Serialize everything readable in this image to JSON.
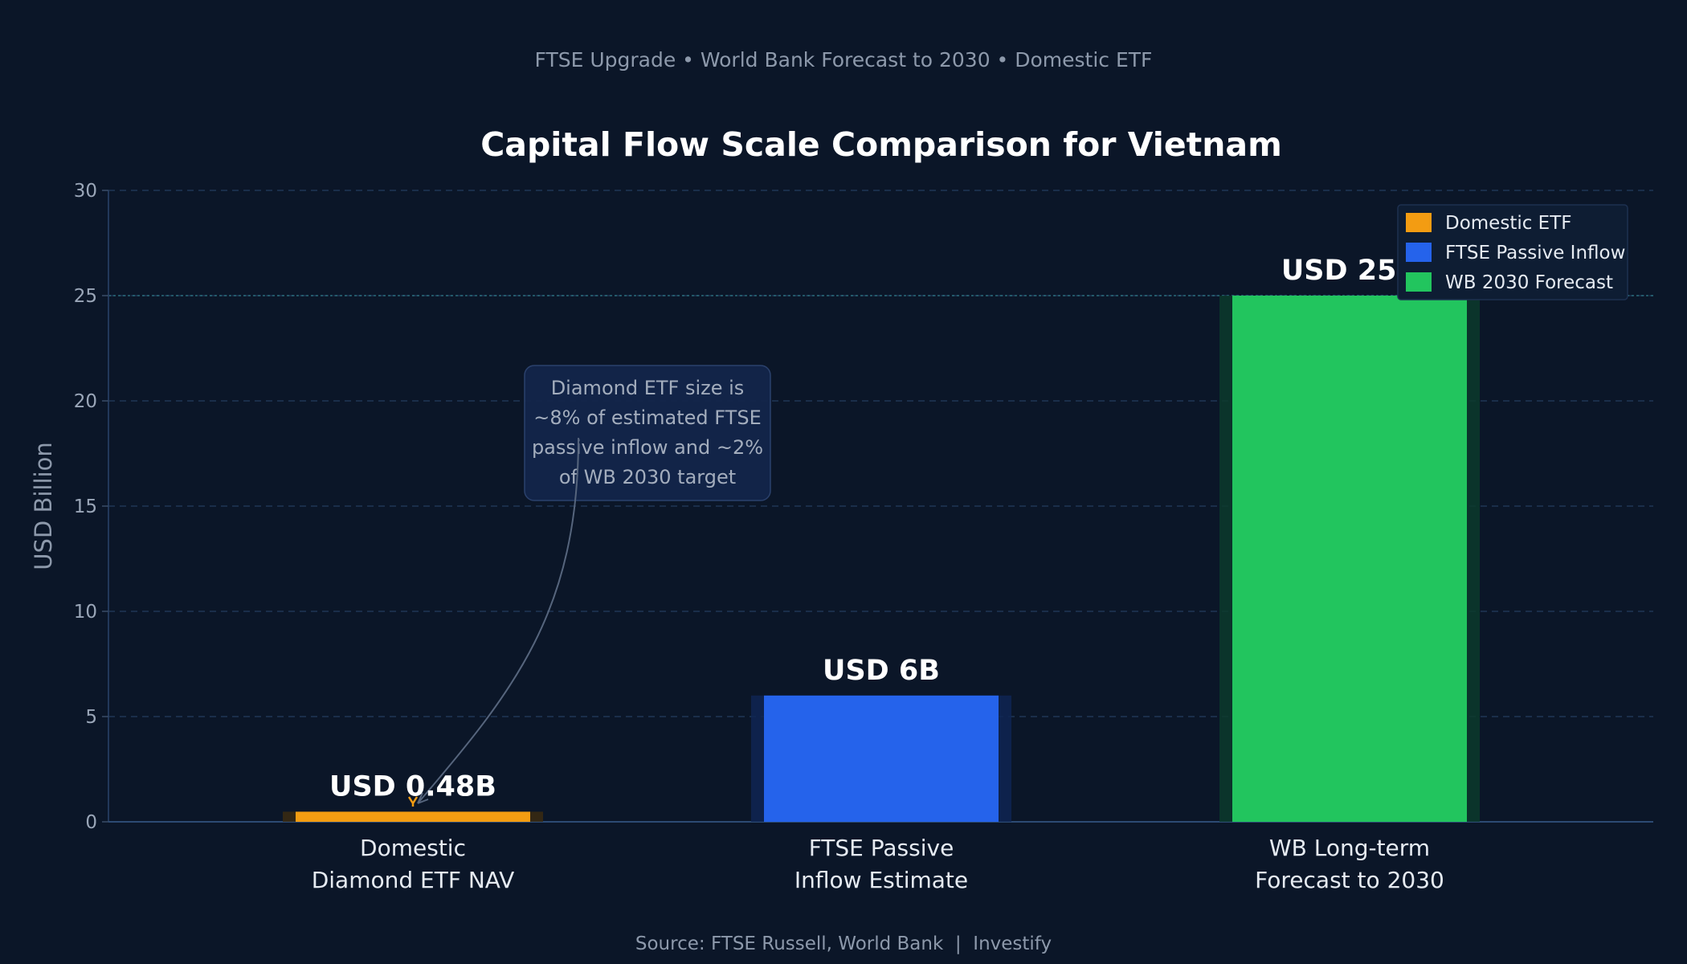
{
  "chart_data": {
    "type": "bar",
    "subtitle": "FTSE Upgrade • World Bank Forecast to 2030 • Domestic ETF",
    "title": "Capital Flow Scale Comparison for Vietnam",
    "xlabel": "",
    "ylabel": "USD Billion",
    "ylim": [
      0,
      30
    ],
    "yticks": [
      0,
      5,
      10,
      15,
      20,
      25,
      30
    ],
    "grid": true,
    "categories": [
      [
        "Domestic",
        "Diamond ETF NAV"
      ],
      [
        "FTSE Passive",
        "Inflow Estimate"
      ],
      [
        "WB Long-term",
        "Forecast to 2030"
      ]
    ],
    "values": [
      0.48,
      6,
      25
    ],
    "value_labels": [
      "USD 0.48B",
      "USD 6B",
      "USD 25B"
    ],
    "colors": [
      "#f39c12",
      "#2563eb",
      "#22c55e"
    ],
    "legend": {
      "position": "top-right",
      "entries": [
        {
          "label": "Domestic ETF",
          "color": "#f39c12"
        },
        {
          "label": "FTSE Passive Inflow",
          "color": "#2563eb"
        },
        {
          "label": "WB 2030 Forecast",
          "color": "#22c55e"
        }
      ]
    },
    "annotation": {
      "lines": [
        "Diamond ETF size is",
        "~8% of estimated FTSE",
        "passive inflow and ~2%",
        "of WB 2030 target"
      ]
    },
    "reference_line": 25,
    "source": "Source: FTSE Russell, World Bank  |  Investify"
  }
}
